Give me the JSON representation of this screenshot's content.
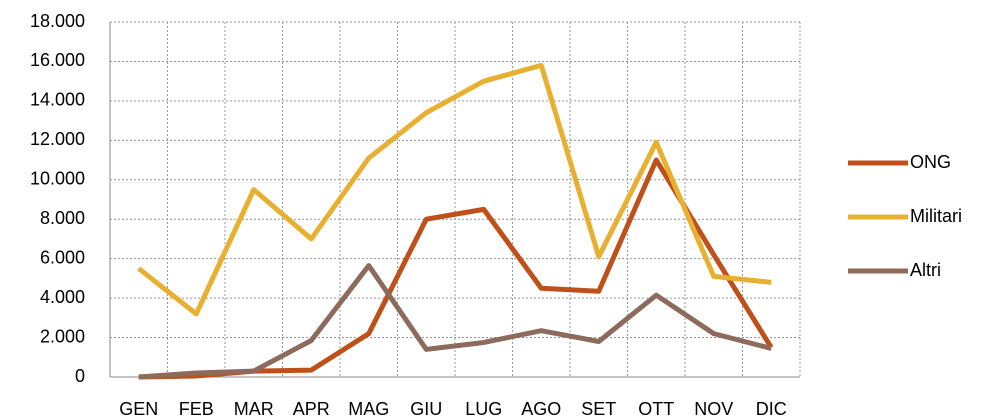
{
  "chart_data": {
    "type": "line",
    "categories": [
      "GEN",
      "FEB",
      "MAR",
      "APR",
      "MAG",
      "GIU",
      "LUG",
      "AGO",
      "SET",
      "OTT",
      "NOV",
      "DIC"
    ],
    "series": [
      {
        "name": "ONG",
        "color": "#c0501a",
        "values": [
          0,
          50,
          300,
          350,
          2200,
          8000,
          8500,
          4500,
          4350,
          11000,
          6200,
          1500
        ]
      },
      {
        "name": "Militari",
        "color": "#e8b030",
        "values": [
          5500,
          3200,
          9500,
          7000,
          11100,
          13400,
          15000,
          15800,
          6100,
          11900,
          5100,
          4800
        ]
      },
      {
        "name": "Altri",
        "color": "#8c6b5c",
        "values": [
          0,
          200,
          300,
          1850,
          5650,
          1400,
          1750,
          2350,
          1800,
          4150,
          2200,
          1450
        ]
      }
    ],
    "ylim": [
      0,
      18000
    ],
    "yticks": [
      0,
      {
        "value": 2000,
        "label": "2.000"
      },
      {
        "value": 4000,
        "label": "4.000"
      },
      {
        "value": 6000,
        "label": "6.000"
      },
      {
        "value": 8000,
        "label": "8.000"
      },
      {
        "value": 10000,
        "label": "10.000"
      },
      {
        "value": 12000,
        "label": "12.000"
      },
      {
        "value": 14000,
        "label": "14.000"
      },
      {
        "value": 16000,
        "label": "16.000"
      },
      {
        "value": 18000,
        "label": "18.000"
      }
    ],
    "grid": true,
    "legend": "right"
  }
}
